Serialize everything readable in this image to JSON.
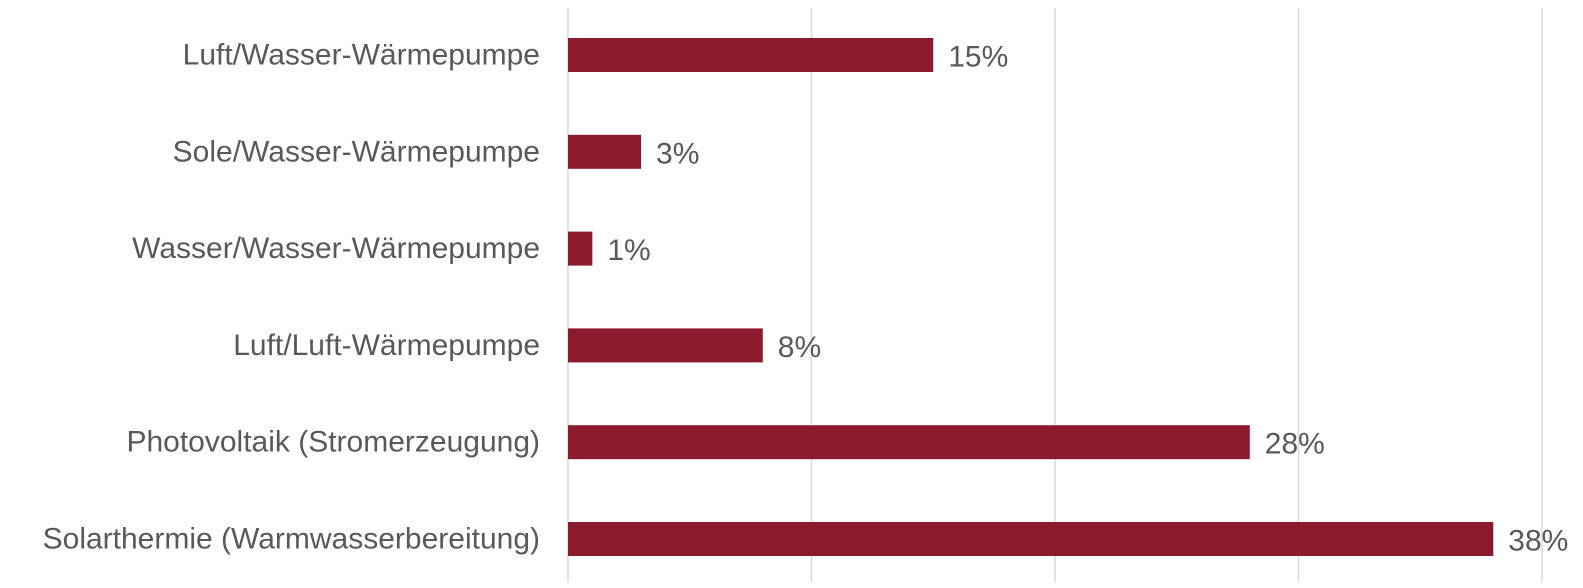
{
  "chart_data": {
    "type": "bar",
    "orientation": "horizontal",
    "categories": [
      "Luft/Wasser-Wärmepumpe",
      "Sole/Wasser-Wärmepumpe",
      "Wasser/Wasser-Wärmepumpe",
      "Luft/Luft-Wärmepumpe",
      "Photovoltaik (Stromerzeugung)",
      "Solarthermie (Warmwasserbereitung)"
    ],
    "values": [
      15,
      3,
      1,
      8,
      28,
      38
    ],
    "data_labels": [
      "15%",
      "3%",
      "1%",
      "8%",
      "28%",
      "38%"
    ],
    "unit": "%",
    "xlim": [
      0,
      40
    ],
    "gridlines": "vertical",
    "legend": "none",
    "colors": {
      "bar": "#8b1a2c",
      "text": "#595959",
      "grid": "#d9d9d9"
    }
  }
}
